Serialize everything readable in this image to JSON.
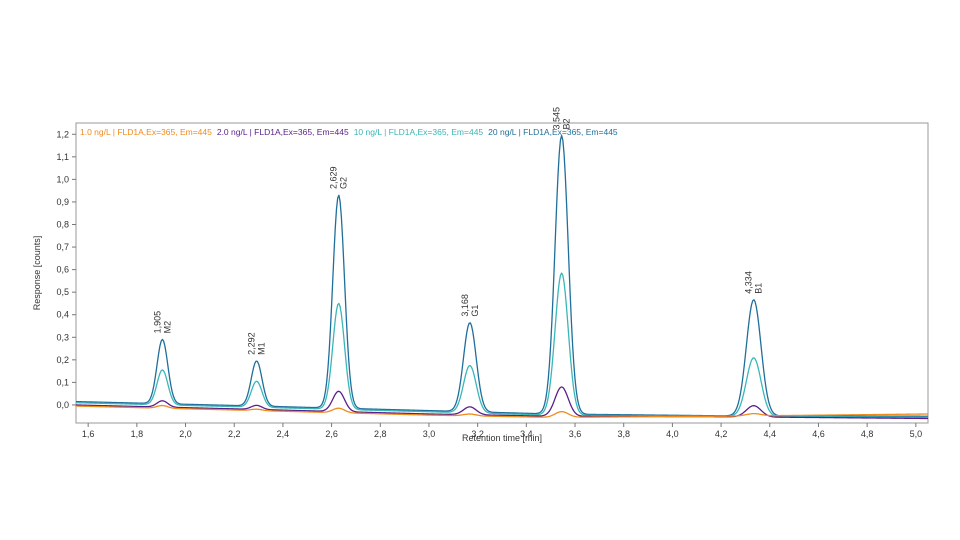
{
  "chart_data": {
    "type": "line",
    "title": "",
    "xlabel": "Retention time [min]",
    "ylabel": "Response [counts]",
    "xlim": [
      1.55,
      5.05
    ],
    "ylim": [
      -0.08,
      1.25
    ],
    "x_ticks": [
      {
        "value": 1.6,
        "label": "1,6"
      },
      {
        "value": 1.8,
        "label": "1,8"
      },
      {
        "value": 2.0,
        "label": "2,0"
      },
      {
        "value": 2.2,
        "label": "2,2"
      },
      {
        "value": 2.4,
        "label": "2,4"
      },
      {
        "value": 2.6,
        "label": "2,6"
      },
      {
        "value": 2.8,
        "label": "2,8"
      },
      {
        "value": 3.0,
        "label": "3,0"
      },
      {
        "value": 3.2,
        "label": "3,2"
      },
      {
        "value": 3.4,
        "label": "3,4"
      },
      {
        "value": 3.6,
        "label": "3,6"
      },
      {
        "value": 3.8,
        "label": "3,8"
      },
      {
        "value": 4.0,
        "label": "4,0"
      },
      {
        "value": 4.2,
        "label": "4,2"
      },
      {
        "value": 4.4,
        "label": "4,4"
      },
      {
        "value": 4.6,
        "label": "4,6"
      },
      {
        "value": 4.8,
        "label": "4,8"
      },
      {
        "value": 5.0,
        "label": "5,0"
      }
    ],
    "y_ticks": [
      {
        "value": 0.0,
        "label": "0,0"
      },
      {
        "value": 0.1,
        "label": "0,1"
      },
      {
        "value": 0.2,
        "label": "0,2"
      },
      {
        "value": 0.3,
        "label": "0,3"
      },
      {
        "value": 0.4,
        "label": "0,4"
      },
      {
        "value": 0.5,
        "label": "0,5"
      },
      {
        "value": 0.6,
        "label": "0,6"
      },
      {
        "value": 0.7,
        "label": "0,7"
      },
      {
        "value": 0.8,
        "label": "0,8"
      },
      {
        "value": 0.9,
        "label": "0,9"
      },
      {
        "value": 1.0,
        "label": "1,0"
      },
      {
        "value": 1.1,
        "label": "1,1"
      },
      {
        "value": 1.2,
        "label": "1,2"
      }
    ],
    "grid": false,
    "legend_position": "top-left",
    "peaks": [
      {
        "rt": 1.905,
        "rt_label": "1,905",
        "name": "M2",
        "width": 0.022
      },
      {
        "rt": 2.292,
        "rt_label": "2,292",
        "name": "M1",
        "width": 0.022
      },
      {
        "rt": 2.629,
        "rt_label": "2,629",
        "name": "G2",
        "width": 0.024
      },
      {
        "rt": 3.168,
        "rt_label": "3,168",
        "name": "G1",
        "width": 0.026
      },
      {
        "rt": 3.545,
        "rt_label": "3,545",
        "name": "B2",
        "width": 0.027
      },
      {
        "rt": 4.334,
        "rt_label": "4,334",
        "name": "B1",
        "width": 0.03
      }
    ],
    "series": [
      {
        "name": "1.0 ng/L | FLD1A,Ex=365, Em=445",
        "color": "#f08a1c",
        "baseline": [
          [
            1.55,
            -0.005
          ],
          [
            2.3,
            -0.025
          ],
          [
            3.0,
            -0.045
          ],
          [
            3.5,
            -0.055
          ],
          [
            4.2,
            -0.05
          ],
          [
            5.05,
            -0.04
          ]
        ],
        "heights": [
          0.012,
          0.006,
          0.02,
          0.008,
          0.025,
          0.01
        ]
      },
      {
        "name": "2.0 ng/L | FLD1A,Ex=365, Em=445",
        "color": "#5a1f8a",
        "baseline": [
          [
            1.55,
            0.0
          ],
          [
            2.3,
            -0.02
          ],
          [
            3.0,
            -0.04
          ],
          [
            3.5,
            -0.05
          ],
          [
            4.2,
            -0.052
          ],
          [
            5.05,
            -0.06
          ]
        ],
        "heights": [
          0.028,
          0.018,
          0.09,
          0.035,
          0.13,
          0.05
        ]
      },
      {
        "name": "10 ng/L | FLD1A,Ex=365, Em=445",
        "color": "#3ab6b8",
        "baseline": [
          [
            1.55,
            0.01
          ],
          [
            2.3,
            -0.01
          ],
          [
            3.0,
            -0.03
          ],
          [
            3.5,
            -0.045
          ],
          [
            4.2,
            -0.05
          ],
          [
            5.05,
            -0.055
          ]
        ],
        "heights": [
          0.155,
          0.115,
          0.47,
          0.21,
          0.63,
          0.26
        ]
      },
      {
        "name": "20 ng/L | FLD1A,Ex=365, Em=445",
        "color": "#1f6e9c",
        "baseline": [
          [
            1.55,
            0.015
          ],
          [
            2.3,
            -0.005
          ],
          [
            3.0,
            -0.025
          ],
          [
            3.5,
            -0.04
          ],
          [
            4.2,
            -0.048
          ],
          [
            5.05,
            -0.05
          ]
        ],
        "heights": [
          0.285,
          0.2,
          0.945,
          0.395,
          1.235,
          0.515
        ]
      }
    ]
  }
}
